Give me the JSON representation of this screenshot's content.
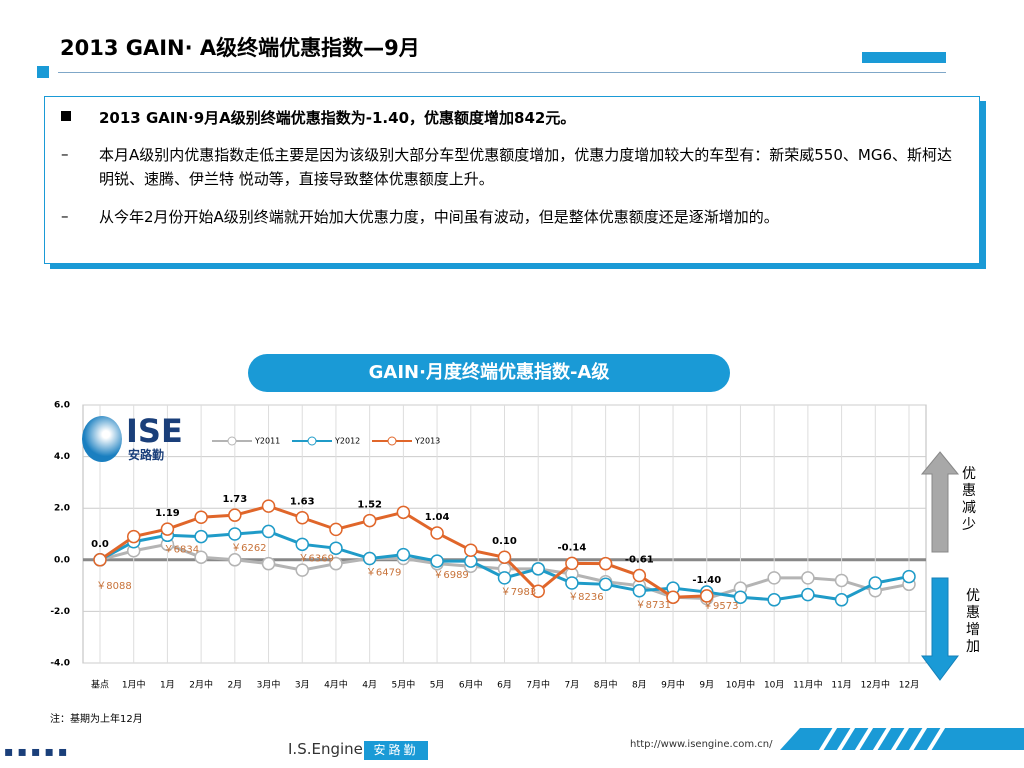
{
  "header": {
    "title": "2013 GAIN· A级终端优惠指数—9月"
  },
  "bullets": {
    "main": "2013 GAIN·9月A级别终端优惠指数为-1.40，优惠额度增加842元。",
    "subs": [
      "本月A级别内优惠指数走低主要是因为该级别大部分车型优惠额度增加，优惠力度增加较大的车型有：新荣威550、MG6、斯柯达 明锐、速腾、伊兰特 悦动等，直接导致整体优惠额度上升。",
      "从今年2月份开始A级别终端就开始加大优惠力度，中间虽有波动，但是整体优惠额度还是逐渐增加的。"
    ]
  },
  "logo": {
    "text": "ISE",
    "cn": "安路勤"
  },
  "chart_data": {
    "type": "line",
    "title": "GAIN·月度终端优惠指数-A级",
    "categories": [
      "基点",
      "1月中",
      "1月",
      "2月中",
      "2月",
      "3月中",
      "3月",
      "4月中",
      "4月",
      "5月中",
      "5月",
      "6月中",
      "6月",
      "7月中",
      "7月",
      "8月中",
      "8月",
      "9月中",
      "9月",
      "10月中",
      "10月",
      "11月中",
      "11月",
      "12月中",
      "12月"
    ],
    "series": [
      {
        "name": "Y2011",
        "color": "#b4b4b4",
        "values": [
          0,
          0.35,
          0.6,
          0.1,
          0,
          -0.15,
          -0.4,
          -0.15,
          0.05,
          0.05,
          -0.15,
          -0.25,
          -0.35,
          -0.35,
          -0.55,
          -0.85,
          -1.0,
          -1.45,
          -1.5,
          -1.1,
          -0.7,
          -0.7,
          -0.8,
          -1.2,
          -0.95
        ]
      },
      {
        "name": "Y2012",
        "color": "#1f9bc8",
        "values": [
          0,
          0.7,
          0.95,
          0.9,
          1.0,
          1.1,
          0.6,
          0.45,
          0.05,
          0.2,
          -0.05,
          -0.05,
          -0.7,
          -0.35,
          -0.9,
          -0.95,
          -1.2,
          -1.1,
          -1.25,
          -1.45,
          -1.55,
          -1.35,
          -1.55,
          -0.9,
          -0.65
        ]
      },
      {
        "name": "Y2013",
        "color": "#e0662a",
        "values": [
          0,
          0.9,
          1.19,
          1.65,
          1.73,
          2.08,
          1.63,
          1.18,
          1.52,
          1.84,
          1.04,
          0.37,
          0.1,
          -1.22,
          -0.14,
          -0.15,
          -0.61,
          -1.45,
          -1.4,
          null,
          null,
          null,
          null,
          null,
          null
        ],
        "value_labels": [
          "0.0",
          null,
          "1.19",
          null,
          "1.73",
          null,
          "1.63",
          null,
          "1.52",
          null,
          "1.04",
          null,
          "0.10",
          null,
          "-0.14",
          null,
          "-0.61",
          null,
          "-1.40",
          null,
          null,
          null,
          null,
          null,
          null
        ]
      }
    ],
    "price_labels": [
      "￥8088",
      null,
      "￥6834",
      null,
      "￥6262",
      null,
      "￥6369",
      null,
      "￥6479",
      null,
      "￥6989",
      null,
      "￥7983",
      null,
      "￥8236",
      null,
      "￥8731",
      null,
      "￥9573",
      null,
      null,
      null,
      null,
      null,
      null
    ],
    "ylim": [
      -4,
      6
    ],
    "yticks": [
      {
        "value": -4,
        "label": "-4.0"
      },
      {
        "value": -2,
        "label": "-2.0"
      },
      {
        "value": 0,
        "label": "0.0"
      },
      {
        "value": 2,
        "label": "2.0"
      },
      {
        "value": 4,
        "label": "4.0"
      },
      {
        "value": 6,
        "label": "6.0"
      }
    ],
    "grid": true,
    "legend": "top"
  },
  "side_labels": {
    "up": "优惠减少",
    "down": "优惠增加"
  },
  "note": "注：基期为上年12月",
  "footer": {
    "brand": "I.S.Engine",
    "brand_cn": "安路勤",
    "url": "http://www.isengine.com.cn/"
  }
}
